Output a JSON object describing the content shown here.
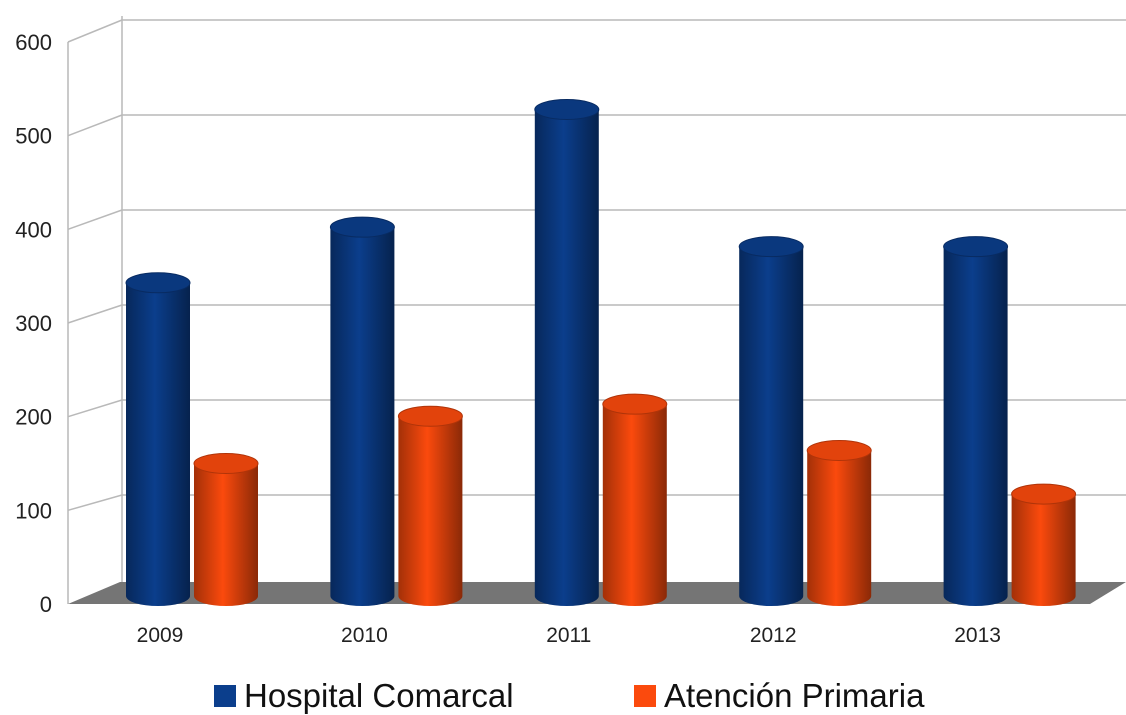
{
  "chart_data": {
    "type": "bar",
    "style": "3d-cylinder",
    "categories": [
      "2009",
      "2010",
      "2011",
      "2012",
      "2013"
    ],
    "series": [
      {
        "name": "Hospital Comarcal",
        "color": "#0b3e8c",
        "values": [
          338,
          398,
          525,
          377,
          377
        ]
      },
      {
        "name": "Atención Primaria",
        "color": "#fb4a0d",
        "values": [
          143,
          194,
          207,
          157,
          110
        ]
      }
    ],
    "yticks": [
      "0",
      "100",
      "200",
      "300",
      "400",
      "500",
      "600"
    ],
    "ylim": [
      0,
      600
    ],
    "grid": true,
    "legend": "bottom",
    "floor_color": "#757575"
  }
}
